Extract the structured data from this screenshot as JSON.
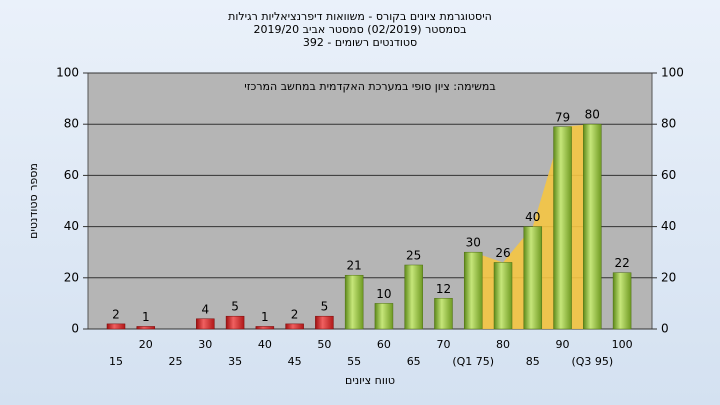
{
  "chart_data": {
    "type": "bar",
    "title": [
      "היסטוגרמת ציונים בקורס - משוואות דיפרנציאליות רגילות",
      "בסמסטר (02/2019) סמסטר אביב 2019/20",
      "סטודנטים רשומים - 392"
    ],
    "annotation": "במשימה: ציון סופי במערכת האקדמית במחשב המרכזי",
    "y_label": "מספר סטודנטים",
    "x_label": "טווח ציונים",
    "categories": [
      "15",
      "20",
      "25",
      "30",
      "35",
      "40",
      "45",
      "50",
      "55",
      "60",
      "65",
      "70",
      "(Q1 75)",
      "80",
      "85",
      "90",
      "(Q3 95)",
      "100"
    ],
    "values": [
      2,
      1,
      null,
      4,
      5,
      1,
      2,
      5,
      21,
      10,
      25,
      12,
      30,
      26,
      40,
      79,
      80,
      22
    ],
    "bar_colors": [
      "red",
      "red",
      "red",
      "red",
      "red",
      "red",
      "red",
      "red",
      "green",
      "green",
      "green",
      "green",
      "green",
      "green",
      "green",
      "green",
      "green",
      "green"
    ],
    "ylim": [
      0,
      100
    ],
    "yticks": [
      0,
      20,
      40,
      60,
      80,
      100
    ],
    "grid": true
  }
}
